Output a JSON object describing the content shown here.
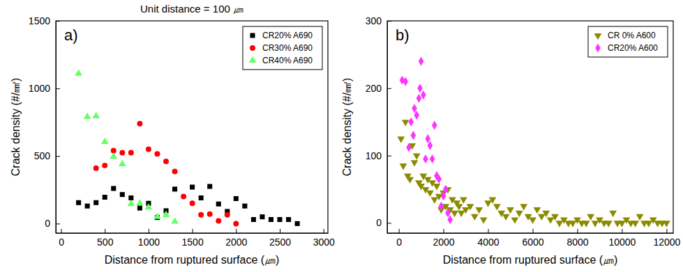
{
  "chart_data": [
    {
      "type": "scatter",
      "title": "Unit distance = 100 ㎛",
      "annotations": [
        "a)"
      ],
      "x_label": "Distance from ruptured surface (㎛)",
      "y_label": "Crack density (#/㎟)",
      "xlim": [
        -60,
        3050
      ],
      "xticks": [
        0,
        500,
        1000,
        1500,
        2000,
        2500,
        3000
      ],
      "ylim": [
        -70,
        1500
      ],
      "yticks": [
        0,
        500,
        1000,
        1500
      ],
      "legend": "upper right",
      "series": [
        {
          "name": "CR20% A690",
          "color": "#000000",
          "marker": "square",
          "x": [
            200,
            300,
            400,
            500,
            600,
            700,
            800,
            900,
            1000,
            1100,
            1200,
            1300,
            1500,
            1600,
            1700,
            1800,
            1900,
            2000,
            2100,
            2200,
            2300,
            2400,
            2500,
            2600,
            2700
          ],
          "values": [
            155,
            130,
            155,
            195,
            260,
            215,
            190,
            115,
            150,
            45,
            95,
            255,
            270,
            190,
            275,
            145,
            90,
            185,
            130,
            30,
            50,
            30,
            30,
            30,
            0
          ]
        },
        {
          "name": "CR30% A690",
          "color": "#ff0000",
          "marker": "circle",
          "x": [
            400,
            500,
            600,
            700,
            800,
            900,
            1000,
            1100,
            1200,
            1300,
            1400,
            1500,
            1600,
            1700,
            1800,
            1900,
            2000
          ],
          "values": [
            410,
            430,
            540,
            525,
            525,
            740,
            550,
            515,
            460,
            385,
            200,
            150,
            65,
            70,
            20,
            65,
            0
          ]
        },
        {
          "name": "CR40% A690",
          "color": "#66ff66",
          "marker": "triangle-up",
          "x": [
            200,
            300,
            400,
            500,
            600,
            700,
            800,
            900,
            1000,
            1100,
            1200,
            1300
          ],
          "values": [
            1110,
            790,
            795,
            605,
            495,
            440,
            145,
            150,
            120,
            50,
            65,
            15
          ]
        }
      ]
    },
    {
      "type": "scatter",
      "annotations": [
        "b)"
      ],
      "x_label": "Distance from ruptured surface (㎛)",
      "y_label": "Crack density (#/㎟)",
      "xlim": [
        -520,
        12300
      ],
      "xticks": [
        0,
        2000,
        4000,
        6000,
        8000,
        10000,
        12000
      ],
      "ylim": [
        -15,
        300
      ],
      "yticks": [
        0,
        100,
        200,
        300
      ],
      "legend": "upper right",
      "series": [
        {
          "name": "CR 0% A600",
          "color": "#8b8b00",
          "marker": "triangle-down",
          "x": [
            100,
            200,
            300,
            400,
            500,
            600,
            700,
            800,
            900,
            1000,
            1100,
            1200,
            1300,
            1400,
            1500,
            1600,
            1700,
            1800,
            1900,
            2000,
            2100,
            2200,
            2300,
            2400,
            2500,
            2600,
            2700,
            2800,
            2900,
            3000,
            3200,
            3400,
            3600,
            3800,
            4000,
            4200,
            4400,
            4600,
            4800,
            5000,
            5200,
            5400,
            5600,
            5800,
            6000,
            6200,
            6400,
            6600,
            6800,
            7000,
            7200,
            7400,
            7600,
            7800,
            8000,
            8200,
            8400,
            8600,
            8800,
            9000,
            9200,
            9400,
            9600,
            9800,
            10000,
            10200,
            10400,
            10600,
            10800,
            11000,
            11200,
            11400,
            11600,
            11800,
            12000
          ],
          "values": [
            125,
            85,
            150,
            70,
            65,
            115,
            90,
            100,
            60,
            55,
            70,
            50,
            65,
            45,
            60,
            35,
            55,
            40,
            20,
            45,
            25,
            50,
            20,
            35,
            15,
            30,
            25,
            15,
            35,
            20,
            25,
            10,
            20,
            5,
            30,
            35,
            25,
            15,
            10,
            20,
            5,
            15,
            25,
            10,
            5,
            20,
            10,
            15,
            5,
            10,
            0,
            5,
            0,
            0,
            5,
            0,
            0,
            10,
            0,
            5,
            0,
            0,
            15,
            0,
            0,
            5,
            0,
            0,
            10,
            0,
            0,
            5,
            0,
            0,
            0
          ]
        },
        {
          "name": "CR20% A600",
          "color": "#ff33ff",
          "marker": "diamond",
          "x": [
            150,
            300,
            450,
            550,
            650,
            700,
            800,
            900,
            950,
            1000,
            1100,
            1200,
            1300,
            1400,
            1500,
            1600,
            1700,
            1800,
            1900,
            2000,
            2100,
            2200,
            2300
          ],
          "values": [
            212,
            210,
            112,
            150,
            130,
            170,
            160,
            185,
            200,
            240,
            190,
            95,
            125,
            115,
            95,
            145,
            70,
            65,
            25,
            40,
            50,
            15,
            5
          ]
        }
      ]
    }
  ]
}
